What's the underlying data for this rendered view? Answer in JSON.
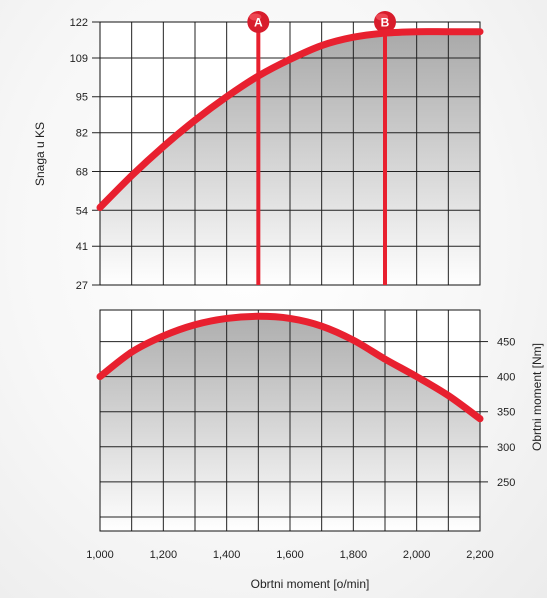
{
  "chart_data": [
    {
      "type": "area",
      "panel": "top",
      "ylabel": "Snaga u KS",
      "yticks": [
        27,
        41,
        54,
        68,
        82,
        95,
        109,
        122
      ],
      "ylim": [
        27,
        122
      ],
      "xlim": [
        1000,
        2200
      ],
      "grid": true,
      "x": [
        1000,
        1100,
        1200,
        1300,
        1400,
        1500,
        1600,
        1700,
        1800,
        1900,
        2000,
        2100,
        2200
      ],
      "y": [
        55,
        66.5,
        77,
        86.5,
        95,
        102.5,
        108.5,
        113.5,
        116.5,
        118,
        118.5,
        118.5,
        118.5
      ],
      "markers": [
        {
          "label": "A",
          "x": 1500
        },
        {
          "label": "B",
          "x": 1900
        }
      ],
      "line_color": "#e8202f"
    },
    {
      "type": "area",
      "panel": "bottom",
      "ylabel": "Obrtni moment [Nm]",
      "yticks": [
        250,
        300,
        350,
        400,
        450
      ],
      "ylim": [
        180,
        495
      ],
      "xlim": [
        1000,
        2200
      ],
      "xticks": [
        "1,000",
        "1,200",
        "1,400",
        "1,600",
        "1,800",
        "2,000",
        "2,200"
      ],
      "xlabel": "Obrtni moment [o/min]",
      "grid": true,
      "x": [
        1000,
        1100,
        1200,
        1300,
        1400,
        1500,
        1600,
        1700,
        1800,
        1900,
        2000,
        2100,
        2200
      ],
      "y": [
        400,
        435,
        458,
        474,
        483,
        486,
        483,
        472,
        452,
        425,
        400,
        373,
        340
      ],
      "line_color": "#e8202f"
    }
  ]
}
